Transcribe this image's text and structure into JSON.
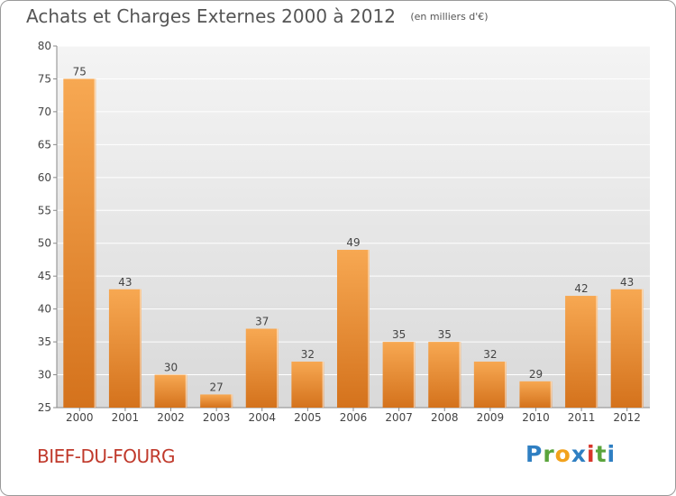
{
  "header": {
    "title": "Achats et Charges Externes 2000 à 2012",
    "subtitle": "(en milliers d'€)"
  },
  "footer": {
    "place": "BIEF-DU-FOURG",
    "place_color": "#c0392b",
    "brand_letters": [
      {
        "ch": "P",
        "color": "#2f7fc2"
      },
      {
        "ch": "r",
        "color": "#5aa43c"
      },
      {
        "ch": "o",
        "color": "#f2a21d"
      },
      {
        "ch": "x",
        "color": "#2f7fc2"
      },
      {
        "ch": "i",
        "color": "#d8352a"
      },
      {
        "ch": "t",
        "color": "#5aa43c"
      },
      {
        "ch": "i",
        "color": "#2f7fc2"
      }
    ]
  },
  "colors": {
    "bar_top": "#f7a852",
    "bar_bottom": "#d4721c",
    "plot_bg_top": "#f4f4f4",
    "plot_bg_bottom": "#d9d9d9",
    "grid": "#ffffff"
  },
  "chart_data": {
    "type": "bar",
    "categories": [
      "2000",
      "2001",
      "2002",
      "2003",
      "2004",
      "2005",
      "2006",
      "2007",
      "2008",
      "2009",
      "2010",
      "2011",
      "2012"
    ],
    "values": [
      75,
      43,
      30,
      27,
      37,
      32,
      49,
      35,
      35,
      32,
      29,
      42,
      43
    ],
    "ylim": [
      25,
      80
    ],
    "yticks": [
      25,
      30,
      35,
      40,
      45,
      50,
      55,
      60,
      65,
      70,
      75,
      80
    ],
    "grid": true,
    "data_labels": true
  }
}
